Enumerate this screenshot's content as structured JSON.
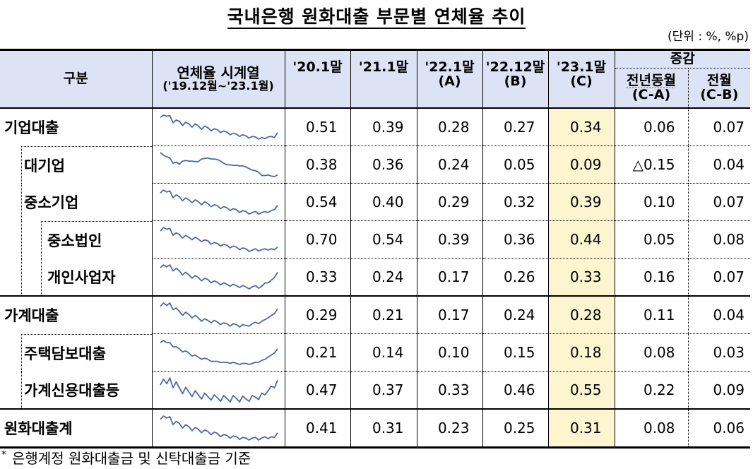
{
  "title": "국내은행 원화대출 부문별 연체율 추이",
  "unit_note": "(단위 : %, %p)",
  "colors": {
    "header_bg": "#dce3f5",
    "highlight_col_bg": "#fdf5cf",
    "sparkline": "#4a6aa8"
  },
  "header": {
    "category": "구분",
    "sparkline_title": "연체율 시계열",
    "sparkline_range": "('19.12월~'23.1월)",
    "col_20_1": "'20.1말",
    "col_21_1": "'21.1말",
    "col_22_1": "'22.1말",
    "col_22_1_tag": "(A)",
    "col_22_12": "'22.12말",
    "col_22_12_tag": "(B)",
    "col_23_1": "'23.1말",
    "col_23_1_tag": "(C)",
    "change_group": "증감",
    "change_yoy": "전년동월",
    "change_yoy_tag": "(C-A)",
    "change_mom": "전월",
    "change_mom_tag": "(C-B)"
  },
  "rows": [
    {
      "label": "기업대출",
      "level": 0,
      "v20_1": "0.51",
      "v21_1": "0.39",
      "v22_1": "0.28",
      "v22_12": "0.27",
      "v23_1": "0.34",
      "yoy": "0.06",
      "mom": "0.07"
    },
    {
      "label": "대기업",
      "level": 1,
      "v20_1": "0.38",
      "v21_1": "0.36",
      "v22_1": "0.24",
      "v22_12": "0.05",
      "v23_1": "0.09",
      "yoy": "△0.15",
      "mom": "0.04"
    },
    {
      "label": "중소기업",
      "level": 1,
      "v20_1": "0.54",
      "v21_1": "0.40",
      "v22_1": "0.29",
      "v22_12": "0.32",
      "v23_1": "0.39",
      "yoy": "0.10",
      "mom": "0.07"
    },
    {
      "label": "중소법인",
      "level": 2,
      "v20_1": "0.70",
      "v21_1": "0.54",
      "v22_1": "0.39",
      "v22_12": "0.36",
      "v23_1": "0.44",
      "yoy": "0.05",
      "mom": "0.08"
    },
    {
      "label": "개인사업자",
      "level": 2,
      "v20_1": "0.33",
      "v21_1": "0.24",
      "v22_1": "0.17",
      "v22_12": "0.26",
      "v23_1": "0.33",
      "yoy": "0.16",
      "mom": "0.07"
    },
    {
      "label": "가계대출",
      "level": 0,
      "v20_1": "0.29",
      "v21_1": "0.21",
      "v22_1": "0.17",
      "v22_12": "0.24",
      "v23_1": "0.28",
      "yoy": "0.11",
      "mom": "0.04"
    },
    {
      "label": "주택담보대출",
      "level": 1,
      "v20_1": "0.21",
      "v21_1": "0.14",
      "v22_1": "0.10",
      "v22_12": "0.15",
      "v23_1": "0.18",
      "yoy": "0.08",
      "mom": "0.03"
    },
    {
      "label": "가계신용대출등",
      "level": 1,
      "v20_1": "0.47",
      "v21_1": "0.37",
      "v22_1": "0.33",
      "v22_12": "0.46",
      "v23_1": "0.55",
      "yoy": "0.22",
      "mom": "0.09"
    },
    {
      "label": "원화대출계",
      "level": 0,
      "v20_1": "0.41",
      "v21_1": "0.31",
      "v22_1": "0.23",
      "v22_12": "0.25",
      "v23_1": "0.31",
      "yoy": "0.08",
      "mom": "0.06"
    }
  ],
  "sparklines": [
    [
      0.62,
      0.66,
      0.64,
      0.65,
      0.52,
      0.57,
      0.55,
      0.47,
      0.53,
      0.5,
      0.44,
      0.5,
      0.46,
      0.4,
      0.46,
      0.43,
      0.37,
      0.41,
      0.39,
      0.34,
      0.37,
      0.35,
      0.3,
      0.33,
      0.31,
      0.27,
      0.3,
      0.28,
      0.24,
      0.27,
      0.26,
      0.22,
      0.25,
      0.23,
      0.26,
      0.27,
      0.25,
      0.34
    ],
    [
      0.6,
      0.55,
      0.52,
      0.5,
      0.4,
      0.42,
      0.38,
      0.44,
      0.45,
      0.44,
      0.44,
      0.43,
      0.43,
      0.48,
      0.49,
      0.5,
      0.48,
      0.48,
      0.47,
      0.44,
      0.4,
      0.37,
      0.37,
      0.36,
      0.36,
      0.35,
      0.35,
      0.33,
      0.3,
      0.27,
      0.26,
      0.23,
      0.17,
      0.17,
      0.18,
      0.16,
      0.15,
      0.18
    ],
    [
      0.7,
      0.76,
      0.72,
      0.74,
      0.6,
      0.66,
      0.62,
      0.54,
      0.6,
      0.56,
      0.5,
      0.56,
      0.52,
      0.46,
      0.52,
      0.48,
      0.42,
      0.46,
      0.44,
      0.38,
      0.42,
      0.4,
      0.34,
      0.38,
      0.36,
      0.3,
      0.34,
      0.32,
      0.27,
      0.3,
      0.32,
      0.27,
      0.3,
      0.32,
      0.3,
      0.34,
      0.36,
      0.45
    ],
    [
      0.8,
      0.88,
      0.84,
      0.86,
      0.7,
      0.76,
      0.72,
      0.64,
      0.7,
      0.66,
      0.6,
      0.66,
      0.62,
      0.56,
      0.6,
      0.58,
      0.5,
      0.54,
      0.52,
      0.46,
      0.5,
      0.48,
      0.42,
      0.46,
      0.44,
      0.38,
      0.42,
      0.4,
      0.34,
      0.37,
      0.4,
      0.35,
      0.38,
      0.4,
      0.37,
      0.4,
      0.38,
      0.44
    ],
    [
      0.45,
      0.49,
      0.46,
      0.49,
      0.4,
      0.44,
      0.4,
      0.34,
      0.38,
      0.34,
      0.29,
      0.33,
      0.3,
      0.25,
      0.29,
      0.27,
      0.22,
      0.25,
      0.23,
      0.19,
      0.22,
      0.2,
      0.17,
      0.2,
      0.18,
      0.15,
      0.18,
      0.16,
      0.13,
      0.16,
      0.18,
      0.14,
      0.17,
      0.22,
      0.22,
      0.26,
      0.3,
      0.38
    ],
    [
      0.36,
      0.4,
      0.37,
      0.4,
      0.32,
      0.34,
      0.3,
      0.25,
      0.29,
      0.26,
      0.22,
      0.25,
      0.22,
      0.18,
      0.21,
      0.19,
      0.16,
      0.19,
      0.17,
      0.14,
      0.16,
      0.15,
      0.12,
      0.15,
      0.14,
      0.11,
      0.14,
      0.13,
      0.12,
      0.15,
      0.17,
      0.15,
      0.18,
      0.2,
      0.22,
      0.25,
      0.27,
      0.33
    ],
    [
      0.28,
      0.3,
      0.28,
      0.28,
      0.24,
      0.24,
      0.22,
      0.19,
      0.2,
      0.18,
      0.15,
      0.16,
      0.14,
      0.12,
      0.13,
      0.12,
      0.1,
      0.1,
      0.1,
      0.09,
      0.09,
      0.09,
      0.08,
      0.09,
      0.08,
      0.07,
      0.08,
      0.08,
      0.07,
      0.08,
      0.09,
      0.09,
      0.11,
      0.12,
      0.14,
      0.16,
      0.18,
      0.22
    ],
    [
      0.5,
      0.6,
      0.52,
      0.62,
      0.45,
      0.55,
      0.45,
      0.35,
      0.46,
      0.38,
      0.3,
      0.4,
      0.33,
      0.26,
      0.36,
      0.3,
      0.24,
      0.33,
      0.28,
      0.22,
      0.32,
      0.27,
      0.21,
      0.32,
      0.27,
      0.21,
      0.31,
      0.26,
      0.22,
      0.32,
      0.29,
      0.25,
      0.36,
      0.33,
      0.4,
      0.48,
      0.45,
      0.58
    ],
    [
      0.5,
      0.55,
      0.52,
      0.54,
      0.42,
      0.47,
      0.44,
      0.37,
      0.42,
      0.39,
      0.33,
      0.38,
      0.35,
      0.3,
      0.34,
      0.32,
      0.27,
      0.31,
      0.29,
      0.24,
      0.27,
      0.26,
      0.22,
      0.25,
      0.24,
      0.2,
      0.23,
      0.22,
      0.19,
      0.22,
      0.23,
      0.19,
      0.22,
      0.24,
      0.21,
      0.24,
      0.23,
      0.3
    ]
  ],
  "footnote": {
    "marker": "*",
    "text": "은행계정 원화대출금 및 신탁대출금 기준"
  }
}
